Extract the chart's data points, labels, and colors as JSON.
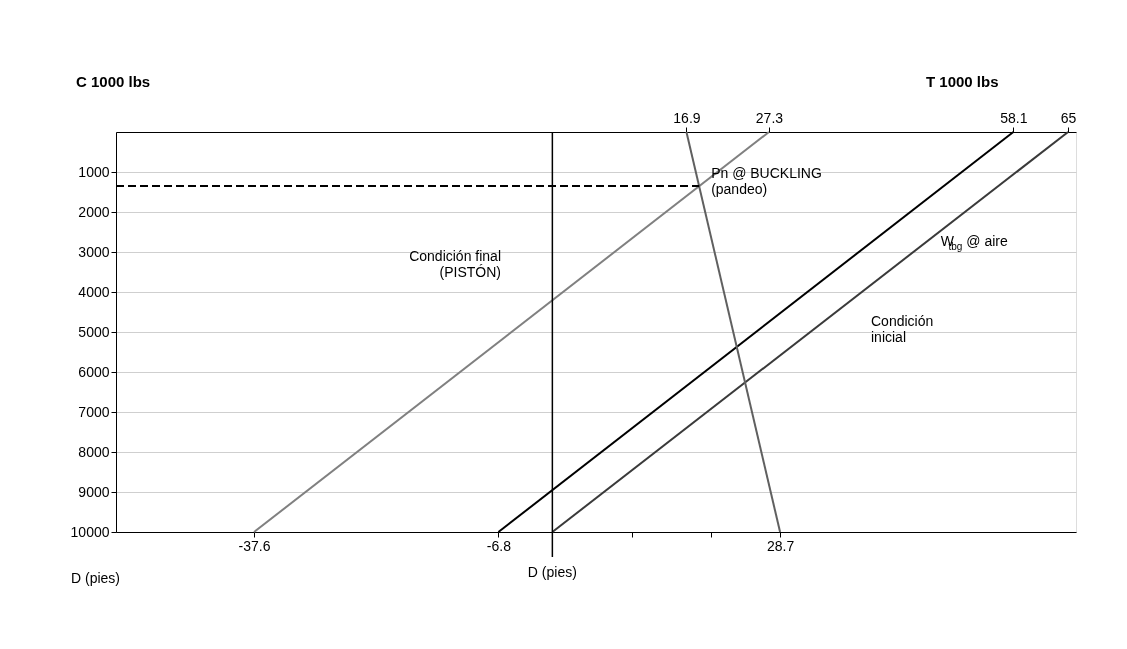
{
  "chart_data": {
    "type": "line",
    "xlabel": "D (pies)",
    "ylabel": "D (pies)",
    "xlim": [
      -55,
      66
    ],
    "ylim": [
      10000,
      0
    ],
    "x2lim": [
      -55,
      66
    ],
    "xticks": [
      -37.6,
      -6.8,
      {
        "value": 0,
        "label": null
      },
      {
        "value": 10,
        "label": null
      },
      {
        "value": 20,
        "label": null
      },
      28.7
    ],
    "x2ticks": [
      16.9,
      27.3,
      58.1,
      65
    ],
    "yticks": [
      1000,
      2000,
      3000,
      4000,
      5000,
      6000,
      7000,
      8000,
      9000,
      10000
    ],
    "grid": "y",
    "marker": "none",
    "series": [
      {
        "color": "#808080",
        "x": [
          -37.6,
          27.3
        ],
        "values": [
          10000,
          0
        ]
      },
      {
        "color": "#000000",
        "x": [
          -6.8,
          58.1
        ],
        "values": [
          10000,
          0
        ]
      },
      {
        "color": "#3a3a3a",
        "x": [
          0,
          65
        ],
        "values": [
          10000,
          0
        ]
      },
      {
        "color": "#606060",
        "x": [
          16.9,
          28.7
        ],
        "values": [
          0,
          10000
        ]
      },
      {
        "color": "#000000",
        "x": [
          -55,
          18.5
        ],
        "values": [
          1350,
          1350
        ],
        "line_style": "dashed"
      }
    ],
    "ref_lines": [
      {
        "axis": "x",
        "value": 0,
        "label": null,
        "color": "#000000"
      }
    ],
    "annotations": [
      "C 1000 lbs",
      "T 1000 lbs",
      {
        "text": "Pn @ BUCKLING\n(pandeo)",
        "x": 18.5,
        "y": 1350
      },
      "Condición final\n(PISTÓN)",
      {
        "text": "W$_{tbg}$ @ aire",
        "x": 43.9,
        "y": 3250
      },
      "Condición\ninicial"
    ]
  }
}
